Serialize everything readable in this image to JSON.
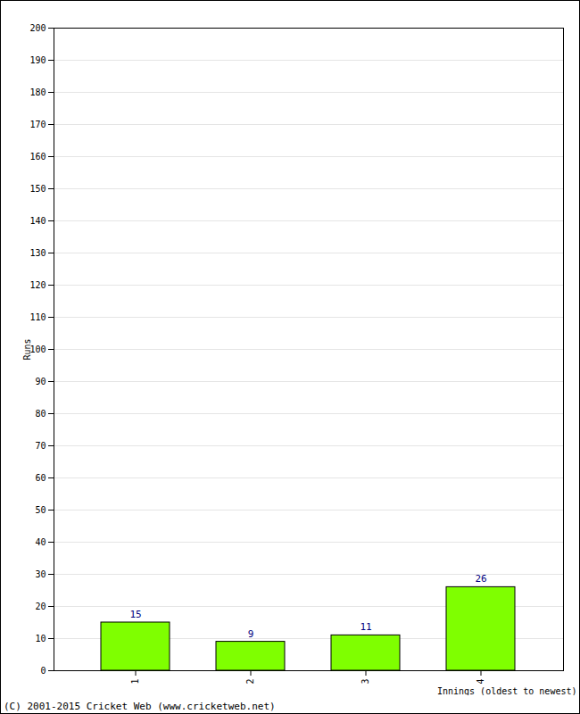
{
  "chart_data": {
    "type": "bar",
    "categories": [
      "1",
      "2",
      "3",
      "4"
    ],
    "values": [
      15,
      9,
      11,
      26
    ],
    "color": "#7fff00",
    "xlabel": "Innings (oldest to newest)",
    "ylabel": "Runs",
    "ylim": [
      0,
      200
    ],
    "yticks": [
      0,
      10,
      20,
      30,
      40,
      50,
      60,
      70,
      80,
      90,
      100,
      110,
      120,
      130,
      140,
      150,
      160,
      170,
      180,
      190,
      200
    ],
    "grid": true,
    "data_labels": true,
    "caption": "(C) 2001-2015 Cricket Web (www.cricketweb.net)"
  }
}
